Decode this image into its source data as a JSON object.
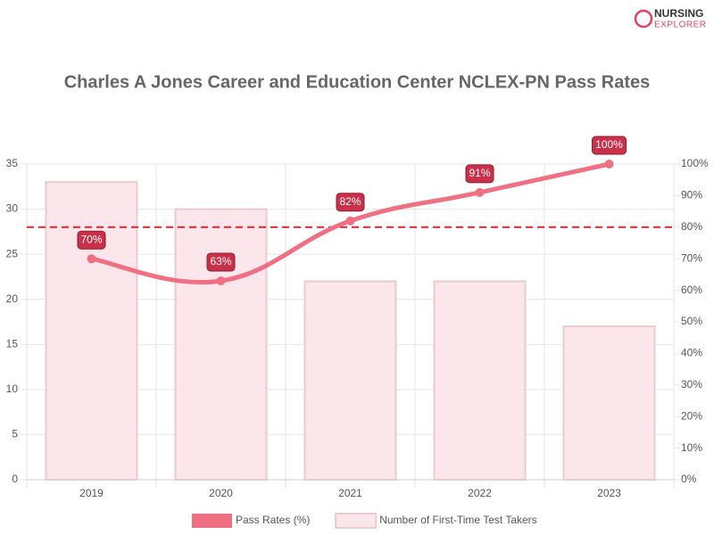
{
  "logo": {
    "line1": "NURSING",
    "line2": "EXPLORER"
  },
  "chart_data": {
    "type": "bar",
    "title": "Charles A Jones Career and Education Center NCLEX-PN Pass Rates",
    "categories": [
      "2019",
      "2020",
      "2021",
      "2022",
      "2023"
    ],
    "series": [
      {
        "name": "Pass Rates (%)",
        "type": "line",
        "axis": "y2",
        "color": "#ef6f83",
        "values": [
          70,
          63,
          82,
          91,
          100
        ],
        "value_labels": [
          "70%",
          "63%",
          "82%",
          "91%",
          "100%"
        ]
      },
      {
        "name": "Number of First-Time Test Takers",
        "type": "bar",
        "color": "#fbe7eb",
        "border": "#e8cbd1",
        "values": [
          33,
          30,
          22,
          22,
          17
        ]
      }
    ],
    "ylim": [
      0,
      35
    ],
    "yticks": [
      0,
      5,
      10,
      15,
      20,
      25,
      30,
      35
    ],
    "y2lim": [
      0,
      100
    ],
    "y2ticks": [
      {
        "value": 0,
        "label": "0%"
      },
      {
        "value": 10,
        "label": "10%"
      },
      {
        "value": 20,
        "label": "20%"
      },
      {
        "value": 30,
        "label": "30%"
      },
      {
        "value": 40,
        "label": "40%"
      },
      {
        "value": 50,
        "label": "50%"
      },
      {
        "value": 60,
        "label": "60%"
      },
      {
        "value": 70,
        "label": "70%"
      },
      {
        "value": 80,
        "label": "80%"
      },
      {
        "value": 90,
        "label": "90%"
      },
      {
        "value": 100,
        "label": "100%"
      }
    ],
    "reference_line": {
      "value": 80,
      "axis": "y2",
      "color": "#dd2233"
    },
    "grid": true,
    "legend": "bottom"
  }
}
